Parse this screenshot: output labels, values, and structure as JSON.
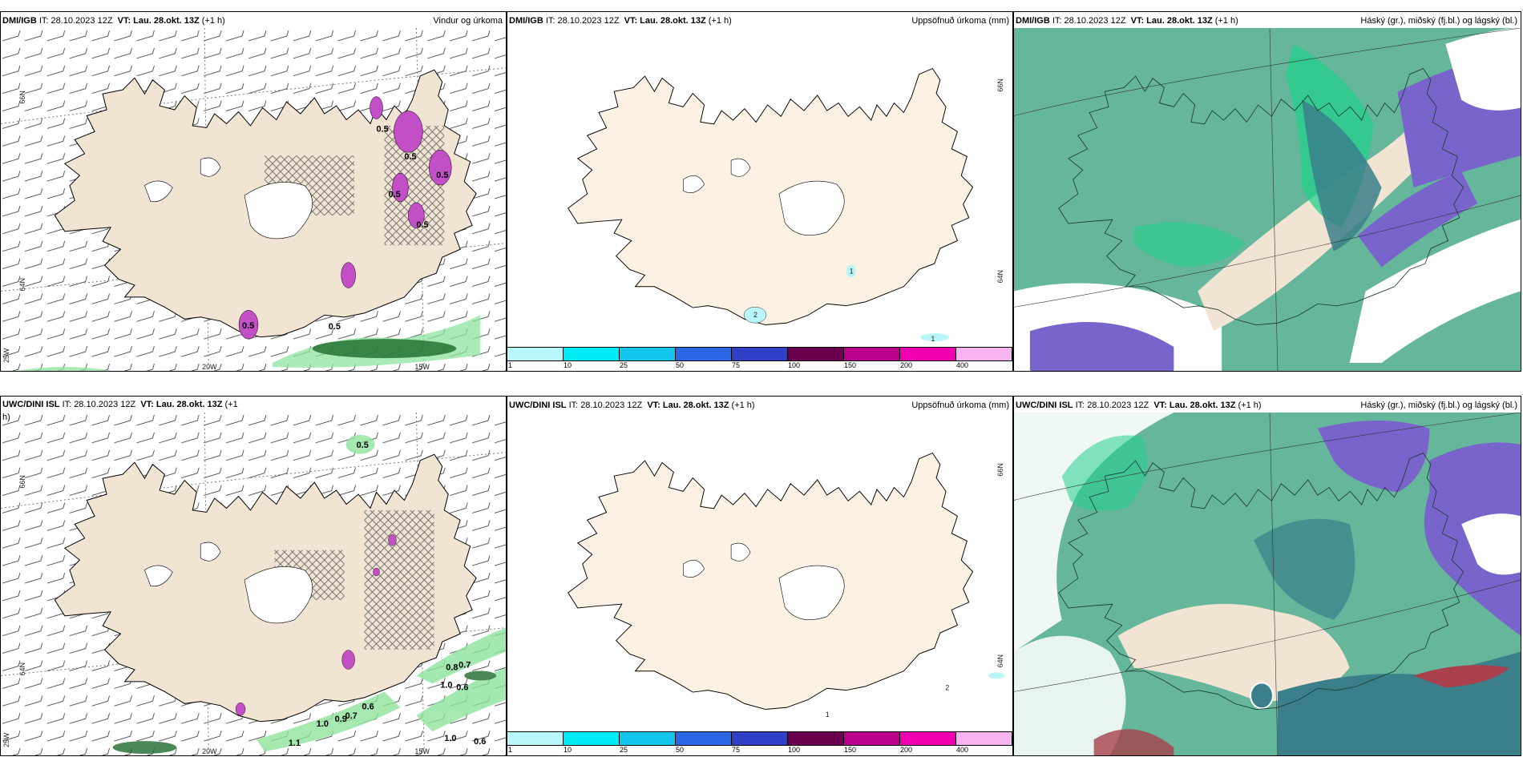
{
  "colors": {
    "land_wind": "#f1e4d3",
    "land_precip": "#fdf1e4",
    "cloud_base": "#65b69b",
    "cloud_high": "#3b7f8a",
    "cloud_mid": "#7964cc",
    "cloud_low": "#24cf8c",
    "precip_green": "#8ee39e",
    "precip_dark": "#1d6b2d",
    "precip_magenta": "#c34fc7"
  },
  "scale": {
    "colors": [
      "#b8f6fa",
      "#00ecf4",
      "#14c5ee",
      "#2b66e6",
      "#2f3fc6",
      "#6c0050",
      "#b8008a",
      "#f000b0",
      "#f5b3f0"
    ],
    "labels": [
      "1",
      "10",
      "25",
      "50",
      "75",
      "100",
      "150",
      "200",
      "400"
    ]
  },
  "panels": [
    {
      "id": "dmi-wind",
      "model": "DMI/IGB",
      "it_label": "IT:",
      "it_value": "28.10.2023 12Z",
      "vt_label": "VT:",
      "vt_value": "Lau. 28.okt. 13Z",
      "lead": "(+1 h)",
      "right_title": "Vindur og úrkoma",
      "lat_labels": [
        "66N",
        "64N",
        "25W"
      ],
      "lon_labels": [
        "20W",
        "15W"
      ],
      "values": [
        "0.5",
        "0.5",
        "0.5",
        "0.5",
        "0.5",
        "0.5",
        "0.5"
      ]
    },
    {
      "id": "dmi-precip",
      "model": "DMI/IGB",
      "it_label": "IT:",
      "it_value": "28.10.2023 12Z",
      "vt_label": "VT:",
      "vt_value": "Lau. 28.okt. 13Z",
      "lead": "(+1 h)",
      "right_title": "Uppsöfnuð úrkoma (mm)",
      "lat_labels": [
        "66N",
        "64N"
      ],
      "values": [
        "2",
        "1",
        "1"
      ]
    },
    {
      "id": "dmi-cloud",
      "model": "DMI/IGB",
      "it_label": "IT:",
      "it_value": "28.10.2023 12Z",
      "vt_label": "VT:",
      "vt_value": "Lau. 28.okt. 13Z",
      "lead": "(+1 h)",
      "right_title": "Háský (gr.), miðský (fj.bl.) og lágský (bl.)"
    },
    {
      "id": "uwc-wind",
      "model": "UWC/DINI ISL",
      "it_label": "IT:",
      "it_value": "28.10.2023 12Z",
      "vt_label": "VT:",
      "vt_value": "Lau. 28.okt. 13Z",
      "lead": "(+1",
      "lead_wrap": "h)",
      "right_title": "",
      "lat_labels": [
        "66N",
        "64N",
        "25W"
      ],
      "lon_labels": [
        "20W",
        "15W"
      ],
      "values": [
        "0.5",
        "1.0",
        "0.9",
        "0.7",
        "0.6",
        "1.1",
        "1.0",
        "0.8",
        "0.7",
        "0.6",
        "1.0",
        "0.6"
      ]
    },
    {
      "id": "uwc-precip",
      "model": "UWC/DINI ISL",
      "it_label": "IT:",
      "it_value": "28.10.2023 12Z",
      "vt_label": "VT:",
      "vt_value": "Lau. 28.okt. 13Z",
      "lead": "(+1 h)",
      "right_title": "Uppsöfnuð úrkoma (mm)",
      "lat_labels": [
        "66N",
        "64N"
      ],
      "values": [
        "2",
        "1"
      ]
    },
    {
      "id": "uwc-cloud",
      "model": "UWC/DINI ISL",
      "it_label": "IT:",
      "it_value": "28.10.2023 12Z",
      "vt_label": "VT:",
      "vt_value": "Lau. 28.okt. 13Z",
      "lead": "(+1 h)",
      "right_title": "Háský (gr.), miðský (fj.bl.) og lágský (bl.)"
    }
  ]
}
